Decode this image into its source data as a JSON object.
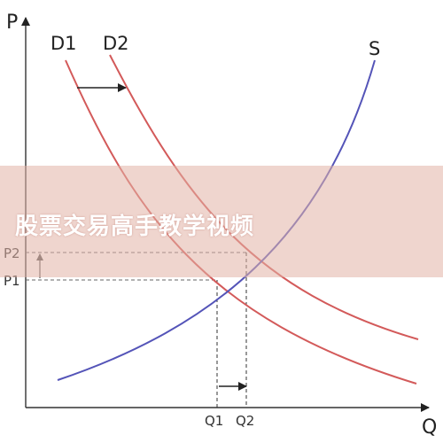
{
  "diagram": {
    "axes": {
      "y_label": "P",
      "x_label": "Q"
    },
    "curves": {
      "demand_1": "D1",
      "demand_2": "D2",
      "supply": "S"
    },
    "prices": {
      "p1": "P1",
      "p2": "P2"
    },
    "quantities": {
      "q1": "Q1",
      "q2": "Q2"
    },
    "colors": {
      "demand": "#d35a5a",
      "supply": "#5454b8",
      "axis": "#333333",
      "guide": "#666666"
    }
  },
  "banner": {
    "text": "股票交易高手教学视频"
  }
}
